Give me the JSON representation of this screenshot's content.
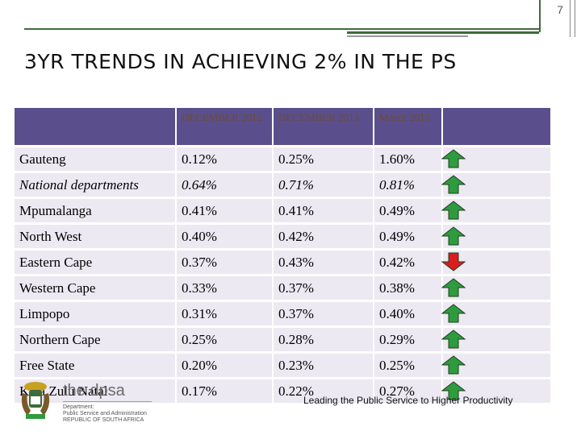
{
  "page_number": "7",
  "title": "3YR TRENDS IN ACHIEVING 2% IN THE PS",
  "table": {
    "columns": [
      "",
      "DECEMBER 2012",
      "DECEMBER 2013",
      "March 2015",
      ""
    ],
    "rows": [
      {
        "name": "Gauteng",
        "v2012": "0.12%",
        "v2013": "0.25%",
        "v2015": "1.60%",
        "trend": "up",
        "italic": false
      },
      {
        "name": "National departments",
        "v2012": "0.64%",
        "v2013": "0.71%",
        "v2015": "0.81%",
        "trend": "up",
        "italic": true
      },
      {
        "name": "Mpumalanga",
        "v2012": "0.41%",
        "v2013": "0.41%",
        "v2015": "0.49%",
        "trend": "up",
        "italic": false
      },
      {
        "name": "North West",
        "v2012": "0.40%",
        "v2013": "0.42%",
        "v2015": "0.49%",
        "trend": "up",
        "italic": false
      },
      {
        "name": "Eastern Cape",
        "v2012": "0.37%",
        "v2013": "0.43%",
        "v2015": "0.42%",
        "trend": "down",
        "italic": false
      },
      {
        "name": "Western Cape",
        "v2012": "0.33%",
        "v2013": "0.37%",
        "v2015": "0.38%",
        "trend": "up",
        "italic": false
      },
      {
        "name": "Limpopo",
        "v2012": "0.31%",
        "v2013": "0.37%",
        "v2015": "0.40%",
        "trend": "up",
        "italic": false
      },
      {
        "name": "Northern Cape",
        "v2012": "0.25%",
        "v2013": "0.28%",
        "v2015": "0.29%",
        "trend": "up",
        "italic": false
      },
      {
        "name": "Free State",
        "v2012": "0.20%",
        "v2013": "0.23%",
        "v2015": "0.25%",
        "trend": "up",
        "italic": false
      },
      {
        "name": "Kwa.Zulu Natal",
        "v2012": "0.17%",
        "v2013": "0.22%",
        "v2015": "0.27%",
        "trend": "up",
        "italic": false
      }
    ]
  },
  "colors": {
    "up": "#2e9b3e",
    "down": "#d81e1e",
    "header_bg": "#5a4f8c",
    "row_bg": "#ece9f2",
    "accent": "#3e6b3a"
  },
  "icons": {
    "up": "up-arrow-icon",
    "down": "down-arrow-icon"
  },
  "footer": {
    "brand": "the dpsa",
    "sub": [
      "Department:",
      "Public Service and Administration",
      "REPUBLIC OF SOUTH AFRICA"
    ],
    "tagline": "Leading the Public Service to Higher Productivity"
  }
}
